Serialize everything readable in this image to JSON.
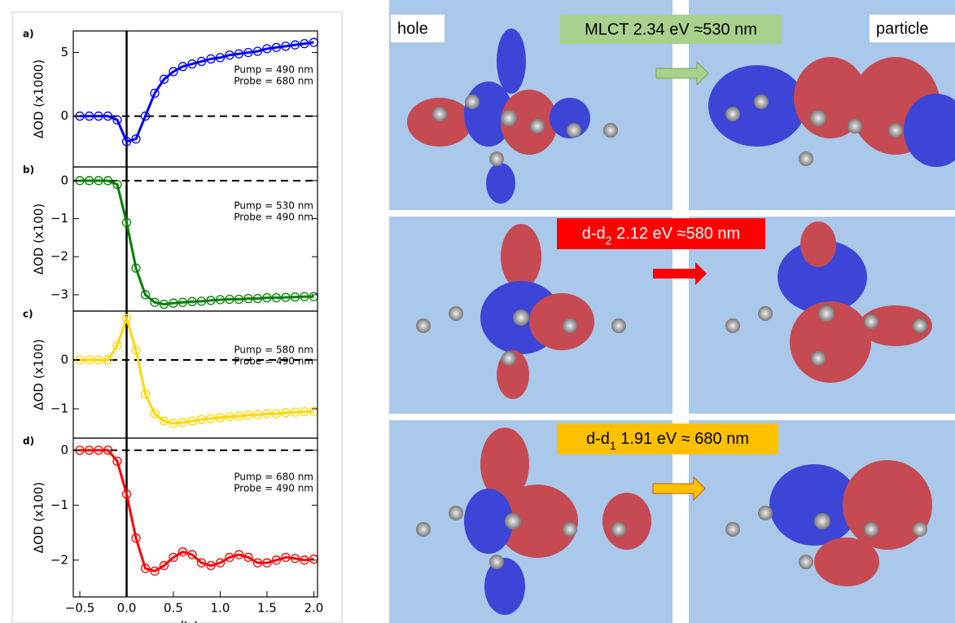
{
  "chart_data": [
    {
      "type": "line",
      "panel_label": "a)",
      "ylabel": "ΔOD (x1000)",
      "annotations": [
        "Pump = 490 nm",
        "Probe = 680 nm"
      ],
      "x": [
        -0.5,
        -0.4,
        -0.3,
        -0.2,
        -0.1,
        0.0,
        0.1,
        0.2,
        0.3,
        0.4,
        0.5,
        0.6,
        0.7,
        0.8,
        0.9,
        1.0,
        1.1,
        1.2,
        1.3,
        1.4,
        1.5,
        1.6,
        1.7,
        1.8,
        1.9,
        2.0
      ],
      "series": [
        {
          "color": "#0000ff",
          "markers": true,
          "values": [
            0,
            0,
            0,
            0,
            -0.3,
            -2.0,
            -1.8,
            0,
            1.8,
            2.9,
            3.5,
            3.9,
            4.1,
            4.3,
            4.5,
            4.6,
            4.8,
            4.9,
            5.0,
            5.1,
            5.3,
            5.4,
            5.5,
            5.6,
            5.7,
            5.8
          ]
        }
      ],
      "xlim": [
        -0.57,
        2.04
      ],
      "ylim": [
        -4.0,
        6.7
      ],
      "yticks": [
        0,
        5
      ],
      "hline": 0,
      "vline": 0
    },
    {
      "type": "line",
      "panel_label": "b)",
      "ylabel": "ΔOD (x100)",
      "annotations": [
        "Pump = 530 nm",
        "Probe = 490 nm"
      ],
      "x": [
        -0.5,
        -0.4,
        -0.3,
        -0.2,
        -0.1,
        0.0,
        0.1,
        0.2,
        0.3,
        0.4,
        0.5,
        0.6,
        0.7,
        0.8,
        0.9,
        1.0,
        1.1,
        1.2,
        1.3,
        1.4,
        1.5,
        1.6,
        1.7,
        1.8,
        1.9,
        2.0
      ],
      "series": [
        {
          "color": "#008000",
          "markers": true,
          "values": [
            0,
            0,
            0,
            0,
            -0.1,
            -1.1,
            -2.3,
            -3.0,
            -3.2,
            -3.25,
            -3.22,
            -3.2,
            -3.18,
            -3.17,
            -3.15,
            -3.13,
            -3.12,
            -3.12,
            -3.1,
            -3.1,
            -3.08,
            -3.08,
            -3.07,
            -3.06,
            -3.05,
            -3.05
          ]
        }
      ],
      "xlim": [
        -0.57,
        2.04
      ],
      "ylim": [
        -3.43,
        0.36
      ],
      "yticks": [
        0,
        {
          "value": -1,
          "label": "−1"
        },
        {
          "value": -2,
          "label": "−2"
        },
        {
          "value": -3,
          "label": "−3"
        }
      ],
      "hline": 0,
      "vline": 0
    },
    {
      "type": "line",
      "panel_label": "c)",
      "ylabel": "ΔOD (x100)",
      "annotations": [
        "Pump = 580 nm",
        "Probe = 490 nm"
      ],
      "x": [
        -0.5,
        -0.4,
        -0.3,
        -0.2,
        -0.1,
        0.0,
        0.1,
        0.2,
        0.3,
        0.4,
        0.5,
        0.6,
        0.7,
        0.8,
        0.9,
        1.0,
        1.1,
        1.2,
        1.3,
        1.4,
        1.5,
        1.6,
        1.7,
        1.8,
        1.9,
        2.0
      ],
      "series": [
        {
          "color": "#ffd700",
          "markers": true,
          "values": [
            0,
            0,
            0,
            0,
            0.3,
            0.85,
            0.2,
            -0.7,
            -1.1,
            -1.25,
            -1.3,
            -1.28,
            -1.25,
            -1.22,
            -1.2,
            -1.18,
            -1.16,
            -1.15,
            -1.13,
            -1.12,
            -1.1,
            -1.1,
            -1.08,
            -1.07,
            -1.06,
            -1.05
          ]
        }
      ],
      "xlim": [
        -0.57,
        2.04
      ],
      "ylim": [
        -1.6,
        1.0
      ],
      "yticks": [
        0,
        {
          "value": -1,
          "label": "−1"
        }
      ],
      "hline": 0,
      "vline": 0
    },
    {
      "type": "line",
      "panel_label": "d)",
      "ylabel": "ΔOD (x100)",
      "annotations": [
        "Pump = 680 nm",
        "Probe = 490 nm"
      ],
      "xlabel": "dt / ps",
      "x": [
        -0.5,
        -0.4,
        -0.3,
        -0.2,
        -0.1,
        0.0,
        0.1,
        0.2,
        0.3,
        0.4,
        0.5,
        0.6,
        0.7,
        0.8,
        0.9,
        1.0,
        1.1,
        1.2,
        1.3,
        1.4,
        1.5,
        1.6,
        1.7,
        1.8,
        1.9,
        2.0
      ],
      "series": [
        {
          "color": "#ff0000",
          "markers": true,
          "values": [
            0,
            0,
            0,
            0,
            -0.2,
            -0.8,
            -1.6,
            -2.15,
            -2.2,
            -2.1,
            -1.95,
            -1.85,
            -1.9,
            -2.05,
            -2.1,
            -2.05,
            -1.95,
            -1.9,
            -1.95,
            -2.05,
            -2.05,
            -2.0,
            -1.95,
            -1.97,
            -2.0,
            -1.98
          ]
        }
      ],
      "xlim": [
        -0.57,
        2.04
      ],
      "ylim": [
        -2.67,
        0.22
      ],
      "yticks": [
        0,
        {
          "value": -1,
          "label": "−1"
        },
        {
          "value": -2,
          "label": "−2"
        }
      ],
      "xticks": [
        {
          "value": -0.5,
          "label": "−0.5"
        },
        {
          "value": 0,
          "label": "0.0"
        },
        0.5,
        {
          "value": 1,
          "label": "1.0"
        },
        1.5,
        {
          "value": 2,
          "label": "2.0"
        }
      ],
      "hline": 0,
      "vline": 0
    }
  ],
  "orbitals": {
    "hole": "hole",
    "particle": "particle",
    "transitions": [
      {
        "prefix": "MLCT 2.34 eV ≈530 nm"
      },
      {
        "prefix": "d-d",
        "sub": "2",
        "rest": " 2.12 eV ≈580 nm"
      },
      {
        "prefix": "d-d",
        "sub": "1",
        "rest": " 1.91 eV ≈ 680 nm"
      }
    ]
  }
}
